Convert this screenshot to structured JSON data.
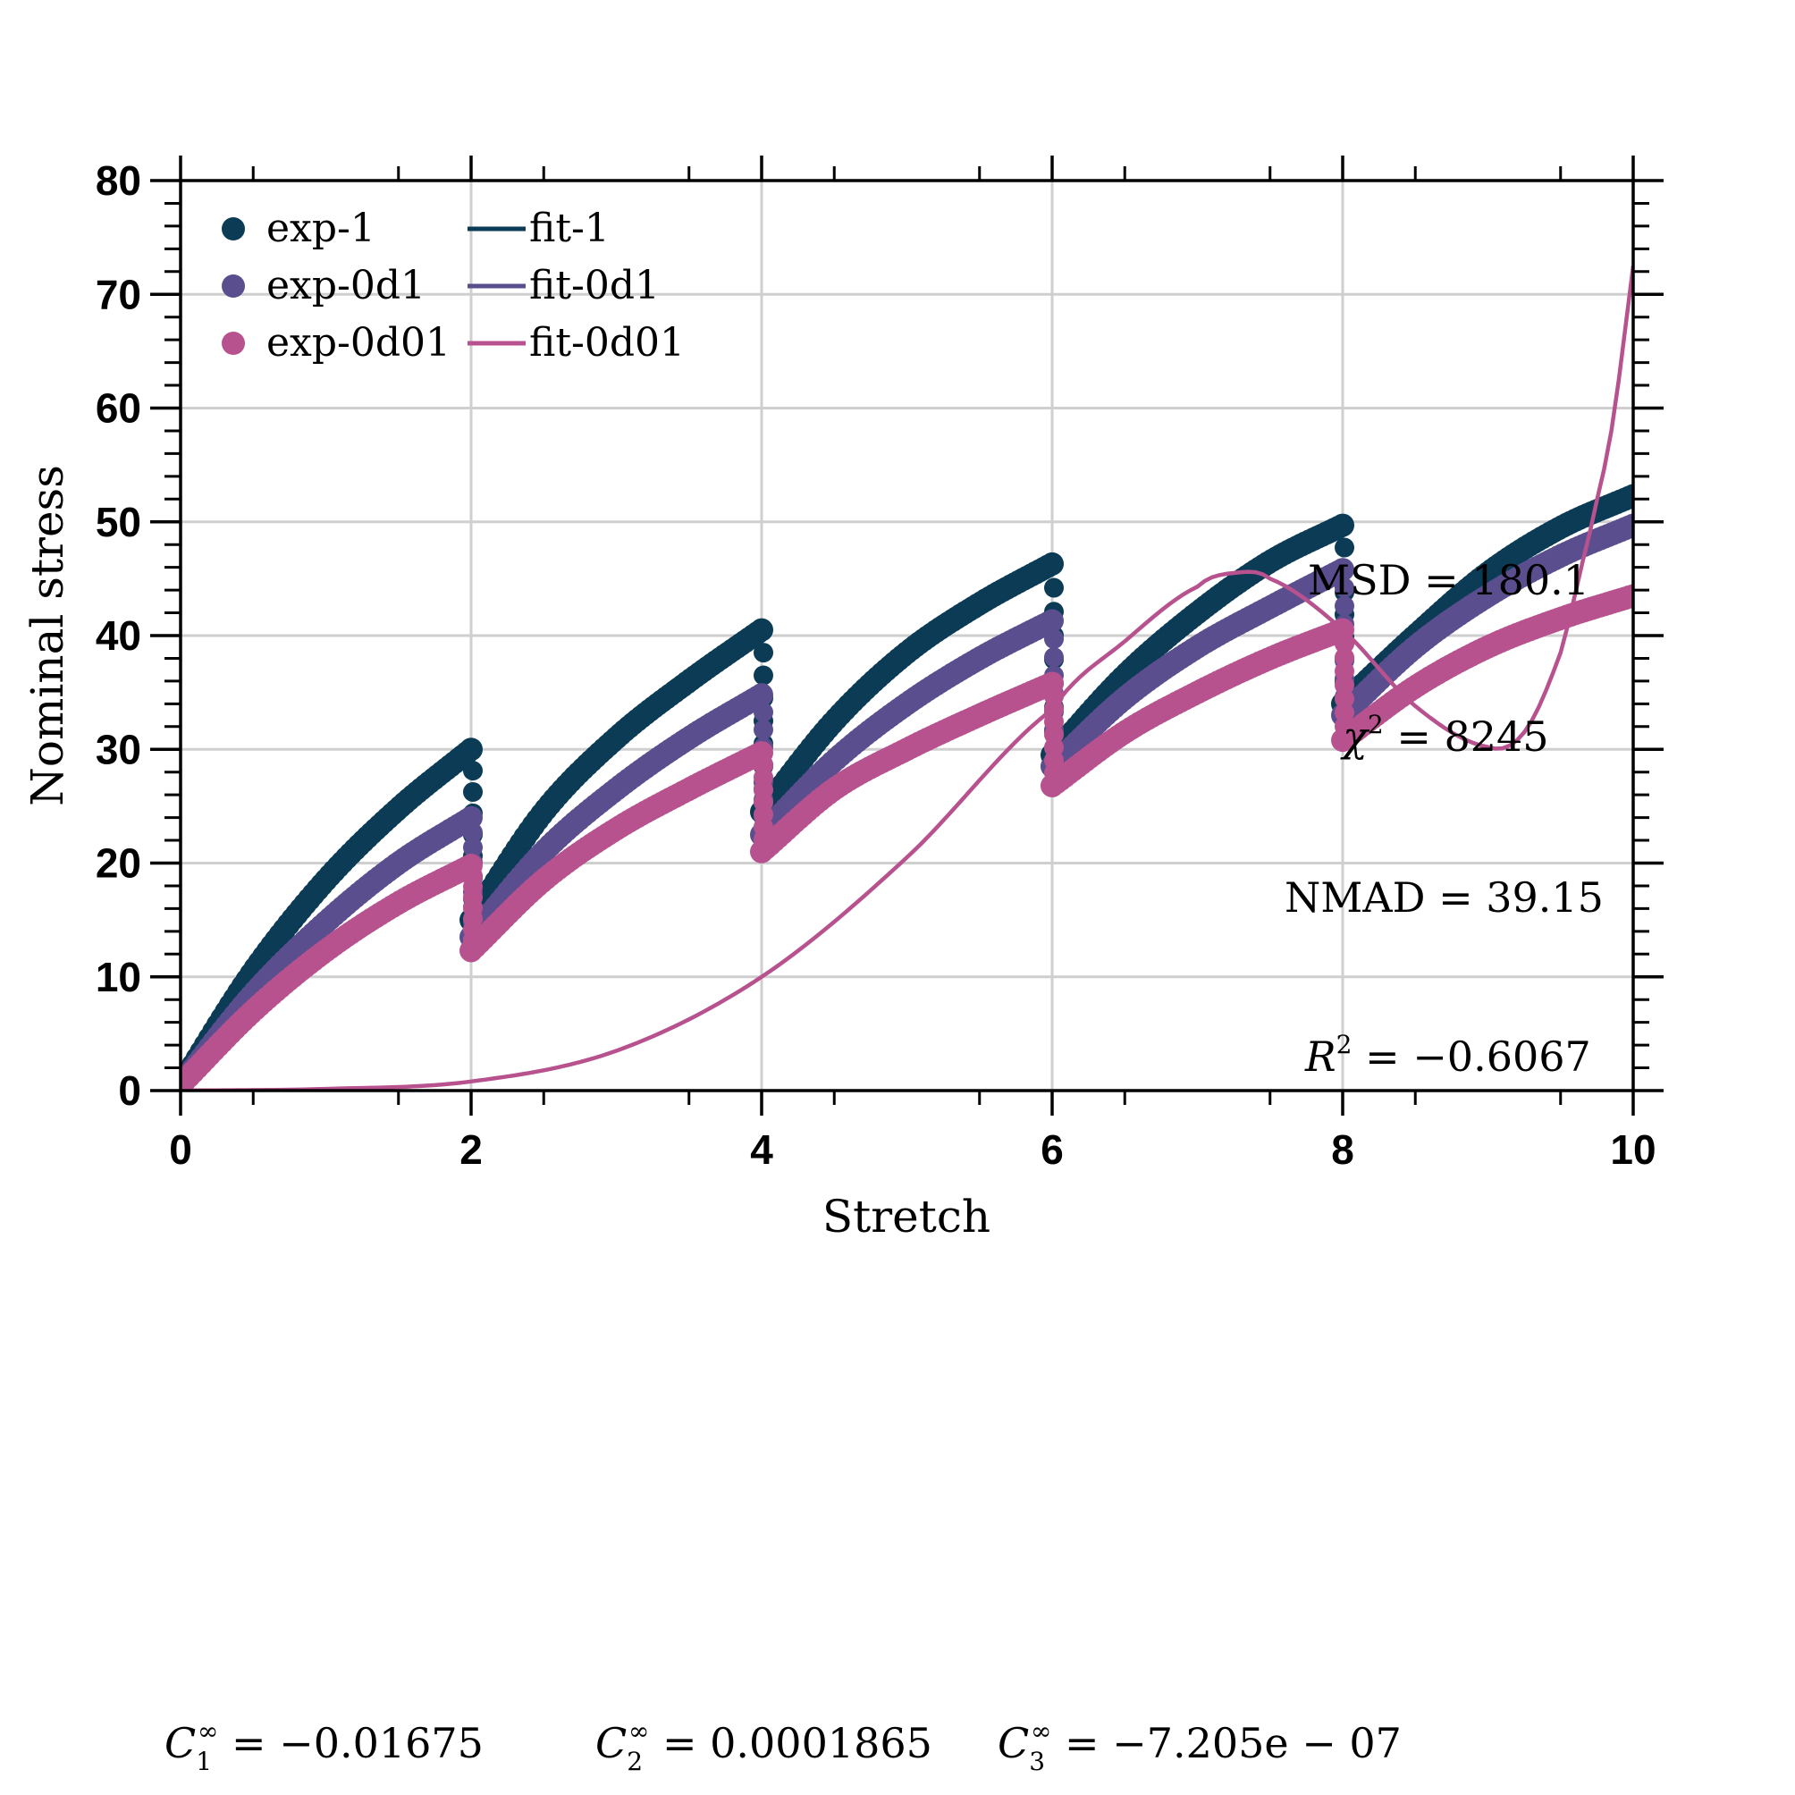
{
  "chart_data": {
    "type": "scatter",
    "xlabel": "Stretch",
    "ylabel": "Nominal stress",
    "xlim": [
      0,
      10
    ],
    "ylim": [
      0,
      80
    ],
    "xticks": [
      "0",
      "2",
      "4",
      "6",
      "8",
      "10"
    ],
    "yticks": [
      "0",
      "10",
      "20",
      "30",
      "40",
      "50",
      "60",
      "70",
      "80"
    ],
    "grid": true,
    "legend_position": "top-left",
    "colors": {
      "exp-1": "#0b3b55",
      "exp-0d1": "#5a4e8f",
      "exp-0d01": "#b8528e"
    },
    "series": [
      {
        "name": "exp-1",
        "kind": "points",
        "color": "#0b3b55",
        "cycles": [
          {
            "x": [
              0.0,
              0.5,
              1.0,
              1.5,
              2.0
            ],
            "y": [
              0.5,
              10.5,
              18.5,
              24.8,
              30.0
            ]
          },
          {
            "x": [
              2.0,
              2.5,
              3.0,
              3.5,
              4.0
            ],
            "y": [
              15.0,
              24.5,
              31.0,
              36.0,
              40.5
            ]
          },
          {
            "x": [
              4.0,
              4.5,
              5.0,
              5.5,
              6.0
            ],
            "y": [
              24.5,
              32.5,
              38.5,
              42.8,
              46.3
            ]
          },
          {
            "x": [
              6.0,
              6.5,
              7.0,
              7.5,
              8.0
            ],
            "y": [
              29.5,
              36.5,
              42.0,
              46.5,
              49.7
            ]
          },
          {
            "x": [
              8.0,
              8.5,
              9.0,
              9.5,
              10.0
            ],
            "y": [
              34.0,
              40.0,
              45.5,
              49.5,
              52.3
            ]
          }
        ]
      },
      {
        "name": "exp-0d1",
        "kind": "points",
        "color": "#5a4e8f",
        "cycles": [
          {
            "x": [
              0.0,
              0.5,
              1.0,
              1.5,
              2.0
            ],
            "y": [
              0.5,
              8.5,
              14.8,
              20.0,
              24.0
            ]
          },
          {
            "x": [
              2.0,
              2.5,
              3.0,
              3.5,
              4.0
            ],
            "y": [
              13.5,
              21.0,
              26.5,
              31.0,
              34.8
            ]
          },
          {
            "x": [
              4.0,
              4.5,
              5.0,
              5.5,
              6.0
            ],
            "y": [
              22.5,
              29.0,
              34.0,
              38.0,
              41.3
            ]
          },
          {
            "x": [
              6.0,
              6.5,
              7.0,
              7.5,
              8.0
            ],
            "y": [
              28.5,
              34.5,
              39.0,
              42.5,
              45.8
            ]
          },
          {
            "x": [
              8.0,
              8.5,
              9.0,
              9.5,
              10.0
            ],
            "y": [
              33.0,
              39.0,
              43.5,
              47.0,
              49.7
            ]
          }
        ]
      },
      {
        "name": "exp-0d01",
        "kind": "points",
        "color": "#b8528e",
        "cycles": [
          {
            "x": [
              0.0,
              0.5,
              1.0,
              1.5,
              2.0
            ],
            "y": [
              0.5,
              7.0,
              12.3,
              16.5,
              19.8
            ]
          },
          {
            "x": [
              2.0,
              2.5,
              3.0,
              3.5,
              4.0
            ],
            "y": [
              12.3,
              18.5,
              23.0,
              26.5,
              29.7
            ]
          },
          {
            "x": [
              4.0,
              4.5,
              5.0,
              5.5,
              6.0
            ],
            "y": [
              21.0,
              26.5,
              30.0,
              33.0,
              35.8
            ]
          },
          {
            "x": [
              6.0,
              6.5,
              7.0,
              7.5,
              8.0
            ],
            "y": [
              26.8,
              31.5,
              35.0,
              38.0,
              40.5
            ]
          },
          {
            "x": [
              8.0,
              8.5,
              9.0,
              9.5,
              10.0
            ],
            "y": [
              30.8,
              35.5,
              39.0,
              41.5,
              43.5
            ]
          }
        ]
      },
      {
        "name": "fit-1",
        "kind": "line",
        "color": "#0b3b55",
        "x": [],
        "y": []
      },
      {
        "name": "fit-0d1",
        "kind": "line",
        "color": "#5a4e8f",
        "x": [],
        "y": []
      },
      {
        "name": "fit-0d01",
        "kind": "line",
        "color": "#b8528e",
        "x": [
          0.0,
          1.0,
          2.0,
          3.0,
          4.0,
          5.0,
          6.0,
          6.5,
          7.0,
          7.25,
          7.5,
          8.0,
          8.5,
          9.0,
          9.25,
          9.5,
          9.7,
          9.85,
          10.0
        ],
        "y": [
          0.0,
          0.15,
          0.8,
          3.5,
          10.0,
          20.5,
          33.5,
          39.5,
          44.3,
          45.5,
          45.0,
          40.5,
          33.8,
          30.2,
          31.5,
          38.5,
          49.0,
          58.0,
          72.5
        ]
      }
    ],
    "annotations": [
      {
        "label": "MSD",
        "value": "180.1"
      },
      {
        "label": "χ²",
        "value": "8245"
      },
      {
        "label": "NMAD",
        "value": "39.15"
      },
      {
        "label": "R²",
        "value": "−0.6067"
      }
    ],
    "coefficients": [
      {
        "label": "C₁^∞",
        "value": "−0.01675"
      },
      {
        "label": "C₂^∞",
        "value": "0.0001865"
      },
      {
        "label": "C₃^∞",
        "value": "−7.205e − 07"
      }
    ]
  }
}
